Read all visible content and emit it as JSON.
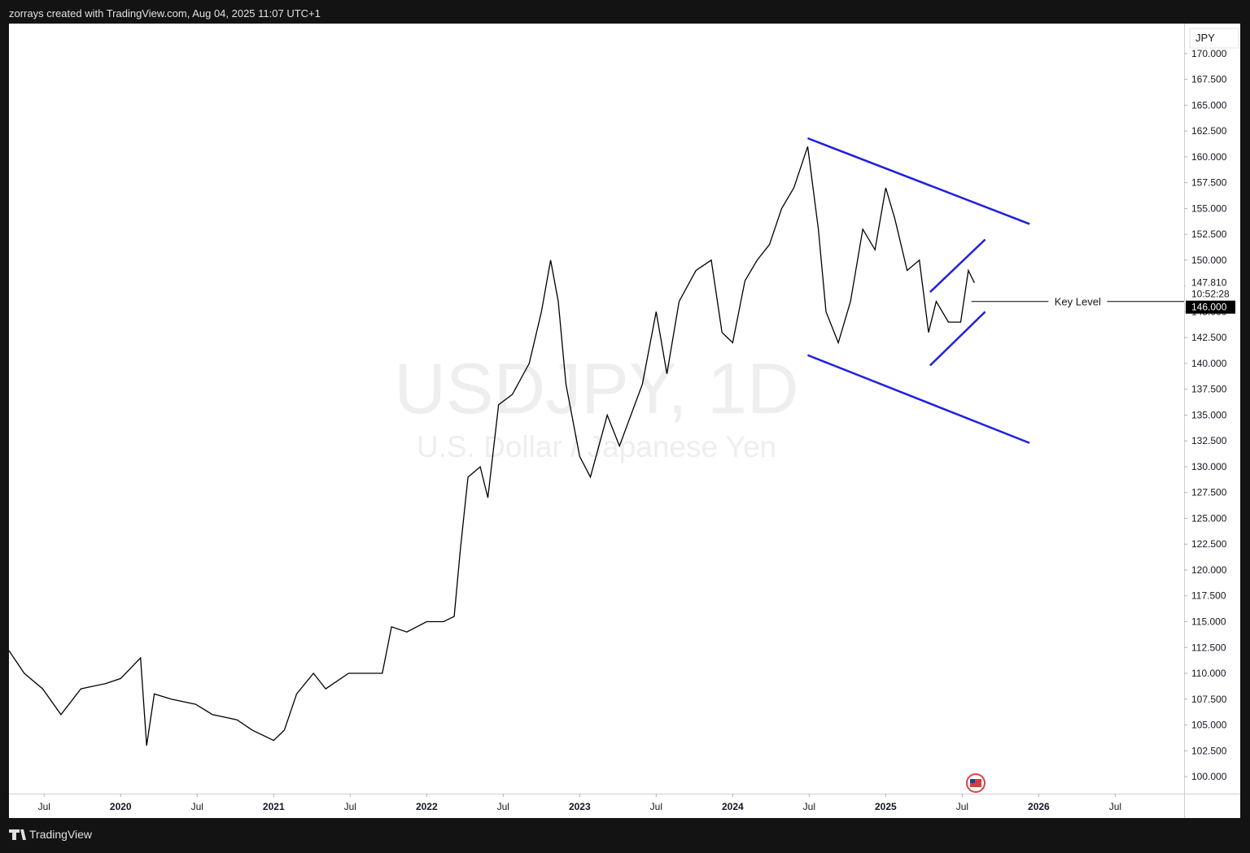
{
  "header": "zorrays created with TradingView.com, Aug 04, 2025 11:07 UTC+1",
  "footer": "TradingView",
  "chart_data": {
    "type": "line",
    "title": "USDJPY, 1D",
    "subtitle": "U.S. Dollar / Japanese Yen",
    "currency": "JPY",
    "color": "#000000",
    "x": [
      2019.27,
      2019.37,
      2019.49,
      2019.61,
      2019.74,
      2019.9,
      2020.0,
      2020.13,
      2020.17,
      2020.22,
      2020.33,
      2020.49,
      2020.6,
      2020.76,
      2020.86,
      2021.0,
      2021.07,
      2021.15,
      2021.26,
      2021.34,
      2021.49,
      2021.61,
      2021.71,
      2021.77,
      2021.87,
      2022.0,
      2022.11,
      2022.18,
      2022.22,
      2022.27,
      2022.35,
      2022.4,
      2022.47,
      2022.56,
      2022.67,
      2022.75,
      2022.81,
      2022.86,
      2022.91,
      2023.0,
      2023.07,
      2023.18,
      2023.26,
      2023.41,
      2023.5,
      2023.57,
      2023.65,
      2023.76,
      2023.86,
      2023.93,
      2024.0,
      2024.08,
      2024.16,
      2024.24,
      2024.32,
      2024.4,
      2024.49,
      2024.56,
      2024.61,
      2024.69,
      2024.77,
      2024.85,
      2024.93,
      2025.0,
      2025.06,
      2025.14,
      2025.22,
      2025.28,
      2025.33,
      2025.41,
      2025.49,
      2025.54,
      2025.58
    ],
    "values": [
      112.2,
      110,
      108.5,
      106,
      108.5,
      109,
      109.5,
      111.5,
      103,
      108,
      107.5,
      107,
      106,
      105.5,
      104.5,
      103.5,
      104.5,
      108,
      110,
      108.5,
      110,
      110,
      110,
      114.5,
      114,
      115,
      115,
      115.5,
      122,
      129,
      130,
      127,
      136,
      137,
      140,
      145,
      150,
      146,
      138,
      131,
      129,
      135,
      132,
      138,
      145,
      139,
      146,
      149,
      150,
      143,
      142,
      148,
      150,
      151.5,
      155,
      157,
      161,
      153,
      145,
      142,
      146,
      153,
      151,
      157,
      154,
      149,
      150,
      143,
      146,
      144,
      144,
      149,
      147.8
    ],
    "xlim": [
      2019.27,
      2026.95
    ],
    "ylim": [
      98.35,
      172.9
    ],
    "xticks": [
      {
        "value": 2019.5,
        "label": "Jul"
      },
      2020,
      {
        "value": 2020.5,
        "label": "Jul"
      },
      2021,
      {
        "value": 2021.5,
        "label": "Jul"
      },
      2022,
      {
        "value": 2022.5,
        "label": "Jul"
      },
      2023,
      {
        "value": 2023.5,
        "label": "Jul"
      },
      2024,
      {
        "value": 2024.5,
        "label": "Jul"
      },
      2025,
      {
        "value": 2025.5,
        "label": "Jul"
      },
      2026,
      {
        "value": 2026.5,
        "label": "Jul"
      }
    ],
    "yticks": [
      {
        "value": 100,
        "label": "100.000"
      },
      {
        "value": 102.5,
        "label": "102.500"
      },
      {
        "value": 105,
        "label": "105.000"
      },
      {
        "value": 107.5,
        "label": "107.500"
      },
      {
        "value": 110,
        "label": "110.000"
      },
      {
        "value": 112.5,
        "label": "112.500"
      },
      {
        "value": 115,
        "label": "115.000"
      },
      {
        "value": 117.5,
        "label": "117.500"
      },
      {
        "value": 120,
        "label": "120.000"
      },
      {
        "value": 122.5,
        "label": "122.500"
      },
      {
        "value": 125,
        "label": "125.000"
      },
      {
        "value": 127.5,
        "label": "127.500"
      },
      {
        "value": 130,
        "label": "130.000"
      },
      {
        "value": 132.5,
        "label": "132.500"
      },
      {
        "value": 135,
        "label": "135.000"
      },
      {
        "value": 137.5,
        "label": "137.500"
      },
      {
        "value": 140,
        "label": "140.000"
      },
      {
        "value": 142.5,
        "label": "142.500"
      },
      {
        "value": 145,
        "label": "145.000"
      },
      {
        "value": 147.5,
        "label": "147.500"
      },
      {
        "value": 150,
        "label": "150.000"
      },
      {
        "value": 152.5,
        "label": "152.500"
      },
      {
        "value": 155,
        "label": "155.000"
      },
      {
        "value": 157.5,
        "label": "157.500"
      },
      {
        "value": 160,
        "label": "160.000"
      },
      {
        "value": 162.5,
        "label": "162.500"
      },
      {
        "value": 165,
        "label": "165.000"
      },
      {
        "value": 167.5,
        "label": "167.500"
      },
      {
        "value": 170,
        "label": "170.000"
      }
    ],
    "lines": [
      {
        "color": "#1f1fe0",
        "x": [
          2024.49,
          2025.94
        ],
        "y": [
          161.8,
          153.5
        ]
      },
      {
        "color": "#1f1fe0",
        "x": [
          2024.49,
          2025.94
        ],
        "y": [
          140.8,
          132.3
        ]
      },
      {
        "color": "#1f1fe0",
        "x": [
          2025.29,
          2025.65
        ],
        "y": [
          146.9,
          152.0
        ]
      },
      {
        "color": "#1f1fe0",
        "x": [
          2025.29,
          2025.65
        ],
        "y": [
          139.8,
          145.0
        ]
      }
    ],
    "key_level": {
      "text": "Key Level",
      "value": 146,
      "label": "146.000",
      "x": 2025.56
    },
    "last_price": {
      "value": 147.81,
      "label": "147.810",
      "countdown": "10:52:28"
    }
  }
}
